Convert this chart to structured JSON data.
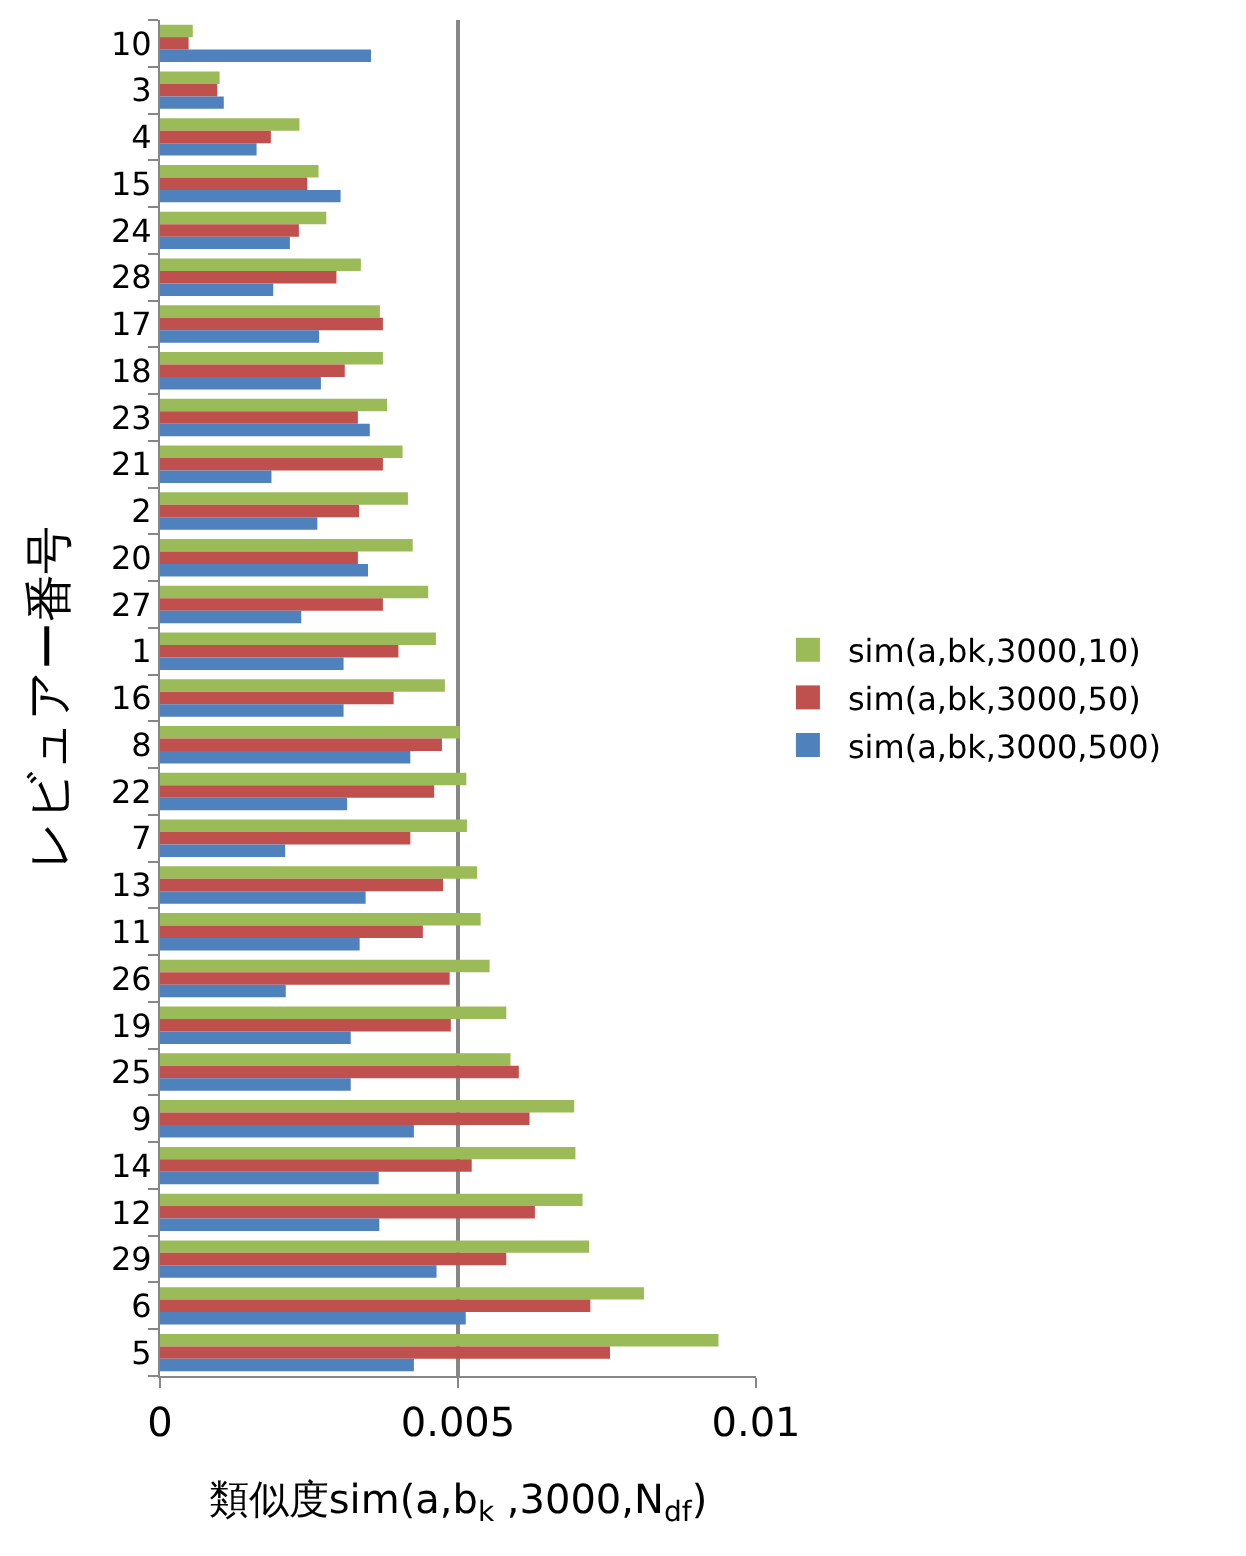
{
  "chart_data": {
    "type": "bar",
    "orientation": "horizontal",
    "xlabel": "類似度sim(a,b$_{k}$ ,3000,N$_{df}$)",
    "ylabel": "レビュアー番号",
    "categories": [
      "10",
      "3",
      "4",
      "15",
      "24",
      "28",
      "17",
      "18",
      "23",
      "21",
      "2",
      "20",
      "27",
      "1",
      "16",
      "8",
      "22",
      "7",
      "13",
      "11",
      "26",
      "19",
      "25",
      "9",
      "14",
      "12",
      "29",
      "6",
      "5"
    ],
    "series": [
      {
        "name": "sim(a,bk,3000,10)",
        "color": "#9bbb59",
        "values": [
          0.00055,
          0.001,
          0.00234,
          0.00266,
          0.00279,
          0.00337,
          0.00369,
          0.00374,
          0.00381,
          0.00407,
          0.00416,
          0.00424,
          0.0045,
          0.00463,
          0.00478,
          0.00503,
          0.00514,
          0.00515,
          0.00532,
          0.00538,
          0.00553,
          0.00581,
          0.00588,
          0.00695,
          0.00697,
          0.00709,
          0.0072,
          0.00812,
          0.00937
        ]
      },
      {
        "name": "sim(a,bk,3000,50)",
        "color": "#c0504d",
        "values": [
          0.00048,
          0.00096,
          0.00186,
          0.00247,
          0.00233,
          0.00296,
          0.00374,
          0.0031,
          0.00332,
          0.00374,
          0.00334,
          0.00332,
          0.00374,
          0.004,
          0.00392,
          0.00473,
          0.0046,
          0.0042,
          0.00475,
          0.00441,
          0.00486,
          0.00488,
          0.00602,
          0.0062,
          0.00523,
          0.00629,
          0.00581,
          0.00722,
          0.00755
        ]
      },
      {
        "name": "sim(a,bk,3000,500)",
        "color": "#4f81bd",
        "values": [
          0.00354,
          0.00107,
          0.00162,
          0.00303,
          0.00218,
          0.0019,
          0.00267,
          0.0027,
          0.00352,
          0.00187,
          0.00264,
          0.00349,
          0.00237,
          0.00308,
          0.00308,
          0.0042,
          0.00314,
          0.0021,
          0.00345,
          0.00335,
          0.00211,
          0.0032,
          0.0032,
          0.00426,
          0.00367,
          0.00368,
          0.00464,
          0.00513,
          0.00426
        ]
      }
    ],
    "xlim": [
      0,
      0.01
    ],
    "xticks": [
      0,
      0.005,
      0.01
    ],
    "grid": "x",
    "legend": "right"
  }
}
